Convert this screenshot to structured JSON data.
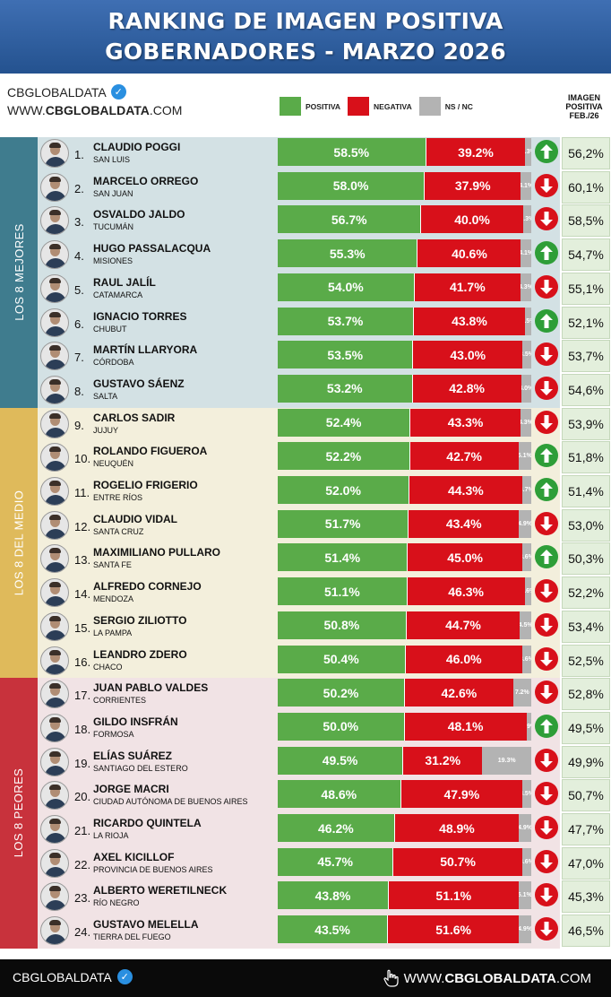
{
  "header": {
    "title_line1": "RANKING DE IMAGEN POSITIVA",
    "title_line2": "GOBERNADORES - MARZO 2026"
  },
  "brand": {
    "name": "CBGLOBALDATA",
    "url_prefix": "WWW.",
    "url_bold": "CBGLOBALDATA",
    "url_suffix": ".COM",
    "icon": "verified-badge-icon"
  },
  "legend": [
    {
      "label": "POSITIVA",
      "color": "#5aab49"
    },
    {
      "label": "NEGATIVA",
      "color": "#d8101a"
    },
    {
      "label": "NS / NC",
      "color": "#b3b3b3"
    }
  ],
  "prev_header": {
    "line1": "IMAGEN",
    "line2": "POSITIVA",
    "line3": "FEB./26"
  },
  "groups": [
    {
      "label": "LOS 8 MEJORES",
      "tab_color": "#3f7c8e",
      "band_color": "#d3e1e4"
    },
    {
      "label": "LOS 8 DEL MEDIO",
      "tab_color": "#dfba5b",
      "band_color": "#f3efdc"
    },
    {
      "label": "LOS 8 PEORES",
      "tab_color": "#c8323c",
      "band_color": "#f1e3e5"
    }
  ],
  "colors": {
    "positive": "#5aab49",
    "negative": "#d8101a",
    "nsnc": "#b3b3b3",
    "up": "#2e9e38",
    "down": "#d8101a"
  },
  "chart_data": {
    "type": "bar",
    "stacked": true,
    "orientation": "horizontal",
    "series_names": [
      "POSITIVA",
      "NEGATIVA",
      "NS / NC"
    ],
    "rows": [
      {
        "rank": "1.",
        "name": "CLAUDIO POGGI",
        "province": "SAN LUIS",
        "pos": 58.5,
        "neg": 39.2,
        "ns": 2.3,
        "pos_label": "58.5%",
        "neg_label": "39.2%",
        "ns_label": "2.3%",
        "trend": "up",
        "prev": "56,2%"
      },
      {
        "rank": "2.",
        "name": "MARCELO ORREGO",
        "province": "SAN JUAN",
        "pos": 58.0,
        "neg": 37.9,
        "ns": 4.1,
        "pos_label": "58.0%",
        "neg_label": "37.9%",
        "ns_label": "4.1%",
        "trend": "down",
        "prev": "60,1%"
      },
      {
        "rank": "3.",
        "name": "OSVALDO JALDO",
        "province": "TUCUMÁN",
        "pos": 56.7,
        "neg": 40.0,
        "ns": 3.3,
        "pos_label": "56.7%",
        "neg_label": "40.0%",
        "ns_label": "3.3%",
        "trend": "down",
        "prev": "58,5%"
      },
      {
        "rank": "4.",
        "name": "HUGO PASSALACQUA",
        "province": "MISIONES",
        "pos": 55.3,
        "neg": 40.6,
        "ns": 4.1,
        "pos_label": "55.3%",
        "neg_label": "40.6%",
        "ns_label": "4.1%",
        "trend": "up",
        "prev": "54,7%"
      },
      {
        "rank": "5.",
        "name": "RAUL JALÍL",
        "province": "CATAMARCA",
        "pos": 54.0,
        "neg": 41.7,
        "ns": 4.3,
        "pos_label": "54.0%",
        "neg_label": "41.7%",
        "ns_label": "4.3%",
        "trend": "down",
        "prev": "55,1%"
      },
      {
        "rank": "6.",
        "name": "IGNACIO TORRES",
        "province": "CHUBUT",
        "pos": 53.7,
        "neg": 43.8,
        "ns": 2.5,
        "pos_label": "53.7%",
        "neg_label": "43.8%",
        "ns_label": "2.5%",
        "trend": "up",
        "prev": "52,1%"
      },
      {
        "rank": "7.",
        "name": "MARTÍN LLARYORA",
        "province": "CÓRDOBA",
        "pos": 53.5,
        "neg": 43.0,
        "ns": 3.5,
        "pos_label": "53.5%",
        "neg_label": "43.0%",
        "ns_label": "3.5%",
        "trend": "down",
        "prev": "53,7%"
      },
      {
        "rank": "8.",
        "name": "GUSTAVO SÁENZ",
        "province": "SALTA",
        "pos": 53.2,
        "neg": 42.8,
        "ns": 4.0,
        "pos_label": "53.2%",
        "neg_label": "42.8%",
        "ns_label": "4.0%",
        "trend": "down",
        "prev": "54,6%"
      },
      {
        "rank": "9.",
        "name": "CARLOS SADIR",
        "province": "JUJUY",
        "pos": 52.4,
        "neg": 43.3,
        "ns": 4.3,
        "pos_label": "52.4%",
        "neg_label": "43.3%",
        "ns_label": "4.3%",
        "trend": "down",
        "prev": "53,9%"
      },
      {
        "rank": "10.",
        "name": "ROLANDO FIGUEROA",
        "province": "NEUQUÉN",
        "pos": 52.2,
        "neg": 42.7,
        "ns": 5.1,
        "pos_label": "52.2%",
        "neg_label": "42.7%",
        "ns_label": "5.1%",
        "trend": "up",
        "prev": "51,8%"
      },
      {
        "rank": "11.",
        "name": "ROGELIO FRIGERIO",
        "province": "ENTRE RÍOS",
        "pos": 52.0,
        "neg": 44.3,
        "ns": 3.7,
        "pos_label": "52.0%",
        "neg_label": "44.3%",
        "ns_label": "3.7%",
        "trend": "up",
        "prev": "51,4%"
      },
      {
        "rank": "12.",
        "name": "CLAUDIO VIDAL",
        "province": "SANTA CRUZ",
        "pos": 51.7,
        "neg": 43.4,
        "ns": 4.9,
        "pos_label": "51.7%",
        "neg_label": "43.4%",
        "ns_label": "4.9%",
        "trend": "down",
        "prev": "53,0%"
      },
      {
        "rank": "13.",
        "name": "MAXIMILIANO PULLARO",
        "province": "SANTA FE",
        "pos": 51.4,
        "neg": 45.0,
        "ns": 3.6,
        "pos_label": "51.4%",
        "neg_label": "45.0%",
        "ns_label": "3.6%",
        "trend": "up",
        "prev": "50,3%"
      },
      {
        "rank": "14.",
        "name": "ALFREDO CORNEJO",
        "province": "MENDOZA",
        "pos": 51.1,
        "neg": 46.3,
        "ns": 2.6,
        "pos_label": "51.1%",
        "neg_label": "46.3%",
        "ns_label": "2.6%",
        "trend": "down",
        "prev": "52,2%"
      },
      {
        "rank": "15.",
        "name": "SERGIO ZILIOTTO",
        "province": "LA PAMPA",
        "pos": 50.8,
        "neg": 44.7,
        "ns": 4.5,
        "pos_label": "50.8%",
        "neg_label": "44.7%",
        "ns_label": "4.5%",
        "trend": "down",
        "prev": "53,4%"
      },
      {
        "rank": "16.",
        "name": "LEANDRO ZDERO",
        "province": "CHACO",
        "pos": 50.4,
        "neg": 46.0,
        "ns": 3.6,
        "pos_label": "50.4%",
        "neg_label": "46.0%",
        "ns_label": "3.6%",
        "trend": "down",
        "prev": "52,5%"
      },
      {
        "rank": "17.",
        "name": "JUAN PABLO VALDES",
        "province": "CORRIENTES",
        "pos": 50.2,
        "neg": 42.6,
        "ns": 7.2,
        "pos_label": "50.2%",
        "neg_label": "42.6%",
        "ns_label": "7.2%",
        "trend": "down",
        "prev": "52,8%"
      },
      {
        "rank": "18.",
        "name": "GILDO INSFRÁN",
        "province": "FORMOSA",
        "pos": 50.0,
        "neg": 48.1,
        "ns": 1.9,
        "pos_label": "50.0%",
        "neg_label": "48.1%",
        "ns_label": "1.9%",
        "trend": "up",
        "prev": "49,5%"
      },
      {
        "rank": "19.",
        "name": "ELÍAS SUÁREZ",
        "province": "SANTIAGO DEL ESTERO",
        "pos": 49.5,
        "neg": 31.2,
        "ns": 19.3,
        "pos_label": "49.5%",
        "neg_label": "31.2%",
        "ns_label": "19.3%",
        "trend": "down",
        "prev": "49,9%"
      },
      {
        "rank": "20.",
        "name": "JORGE MACRI",
        "province": "CIUDAD AUTÓNOMA DE BUENOS AIRES",
        "pos": 48.6,
        "neg": 47.9,
        "ns": 3.5,
        "pos_label": "48.6%",
        "neg_label": "47.9%",
        "ns_label": "3.5%",
        "trend": "down",
        "prev": "50,7%"
      },
      {
        "rank": "21.",
        "name": "RICARDO QUINTELA",
        "province": "LA RIOJA",
        "pos": 46.2,
        "neg": 48.9,
        "ns": 4.9,
        "pos_label": "46.2%",
        "neg_label": "48.9%",
        "ns_label": "4.9%",
        "trend": "down",
        "prev": "47,7%"
      },
      {
        "rank": "22.",
        "name": "AXEL KICILLOF",
        "province": "PROVINCIA DE BUENOS AIRES",
        "pos": 45.7,
        "neg": 50.7,
        "ns": 3.6,
        "pos_label": "45.7%",
        "neg_label": "50.7%",
        "ns_label": "3.6%",
        "trend": "down",
        "prev": "47,0%"
      },
      {
        "rank": "23.",
        "name": "ALBERTO WERETILNECK",
        "province": "RÍO NEGRO",
        "pos": 43.8,
        "neg": 51.1,
        "ns": 5.1,
        "pos_label": "43.8%",
        "neg_label": "51.1%",
        "ns_label": "5.1%",
        "trend": "down",
        "prev": "45,3%"
      },
      {
        "rank": "24.",
        "name": "GUSTAVO MELELLA",
        "province": "TIERRA DEL FUEGO",
        "pos": 43.5,
        "neg": 51.6,
        "ns": 4.9,
        "pos_label": "43.5%",
        "neg_label": "51.6%",
        "ns_label": "4.9%",
        "trend": "down",
        "prev": "46,5%"
      }
    ]
  },
  "footer": {
    "left": "CBGLOBALDATA",
    "right_prefix": "WWW.",
    "right_bold": "CBGLOBALDATA",
    "right_suffix": ".COM",
    "icons": [
      "verified-badge-icon",
      "pointer-hand-icon"
    ]
  }
}
